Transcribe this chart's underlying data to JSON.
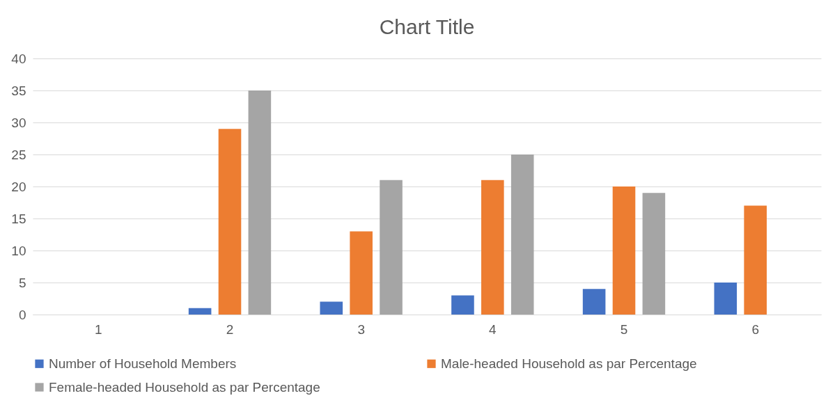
{
  "chart_data": {
    "type": "bar",
    "title": "Chart Title",
    "categories": [
      "1",
      "2",
      "3",
      "4",
      "5",
      "6"
    ],
    "series": [
      {
        "name": "Number of Household Members",
        "color": "#4472c4",
        "values": [
          null,
          1,
          2,
          3,
          4,
          5
        ]
      },
      {
        "name": "Male-headed Household as par Percentage",
        "color": "#ed7d31",
        "values": [
          null,
          29,
          13,
          21,
          20,
          17
        ]
      },
      {
        "name": "Female-headed Household as par Percentage",
        "color": "#a5a5a5",
        "values": [
          null,
          35,
          21,
          25,
          19,
          null
        ]
      }
    ],
    "ylim": [
      0,
      40
    ],
    "yticks": [
      0,
      5,
      10,
      15,
      20,
      25,
      30,
      35,
      40
    ],
    "grid": "y",
    "legend": "bottom"
  }
}
